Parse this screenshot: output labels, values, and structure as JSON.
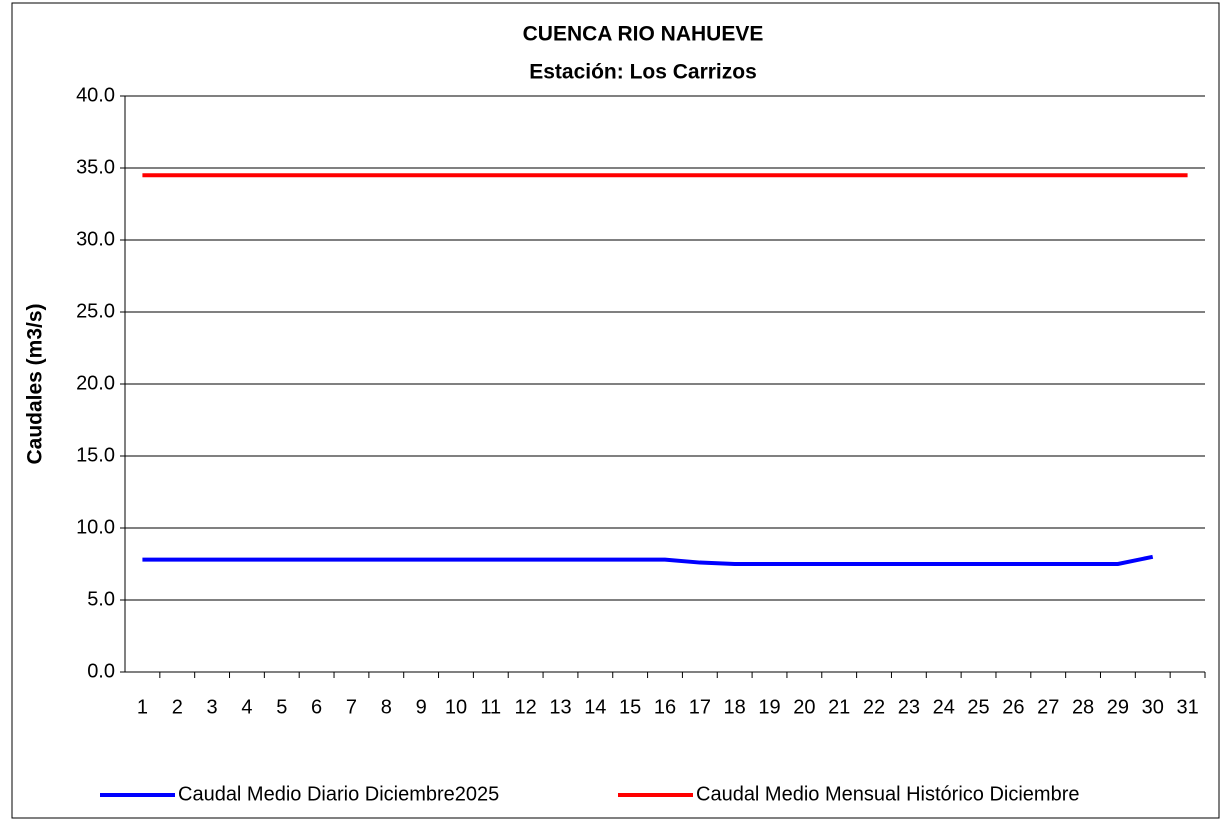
{
  "chart_data": {
    "type": "line",
    "title": "CUENCA RIO NAHUEVE",
    "subtitle": "Estación: Los Carrizos",
    "y_label": "Caudales (m3/s)",
    "categories": [
      "1",
      "2",
      "3",
      "4",
      "5",
      "6",
      "7",
      "8",
      "9",
      "10",
      "11",
      "12",
      "13",
      "14",
      "15",
      "16",
      "17",
      "18",
      "19",
      "20",
      "21",
      "22",
      "23",
      "24",
      "25",
      "26",
      "27",
      "28",
      "29",
      "30",
      "31"
    ],
    "series": [
      {
        "name": "Caudal Medio Diario Diciembre2025",
        "color": "#0000ff",
        "values": [
          7.8,
          7.8,
          7.8,
          7.8,
          7.8,
          7.8,
          7.8,
          7.8,
          7.8,
          7.8,
          7.8,
          7.8,
          7.8,
          7.8,
          7.8,
          7.8,
          7.6,
          7.5,
          7.5,
          7.5,
          7.5,
          7.5,
          7.5,
          7.5,
          7.5,
          7.5,
          7.5,
          7.5,
          7.5,
          8.0,
          null
        ]
      },
      {
        "name": "Caudal Medio Mensual Histórico Diciembre",
        "color": "#ff0000",
        "values": [
          34.5,
          34.5,
          34.5,
          34.5,
          34.5,
          34.5,
          34.5,
          34.5,
          34.5,
          34.5,
          34.5,
          34.5,
          34.5,
          34.5,
          34.5,
          34.5,
          34.5,
          34.5,
          34.5,
          34.5,
          34.5,
          34.5,
          34.5,
          34.5,
          34.5,
          34.5,
          34.5,
          34.5,
          34.5,
          34.5,
          34.5
        ]
      }
    ],
    "ylim": [
      0,
      40
    ],
    "yticks": [
      {
        "value": 0,
        "label": "0.0"
      },
      {
        "value": 5,
        "label": "5.0"
      },
      {
        "value": 10,
        "label": "10.0"
      },
      {
        "value": 15,
        "label": "15.0"
      },
      {
        "value": 20,
        "label": "20.0"
      },
      {
        "value": 25,
        "label": "25.0"
      },
      {
        "value": 30,
        "label": "30.0"
      },
      {
        "value": 35,
        "label": "35.0"
      },
      {
        "value": 40,
        "label": "40.0"
      }
    ],
    "grid": true,
    "legend": "bottom"
  }
}
